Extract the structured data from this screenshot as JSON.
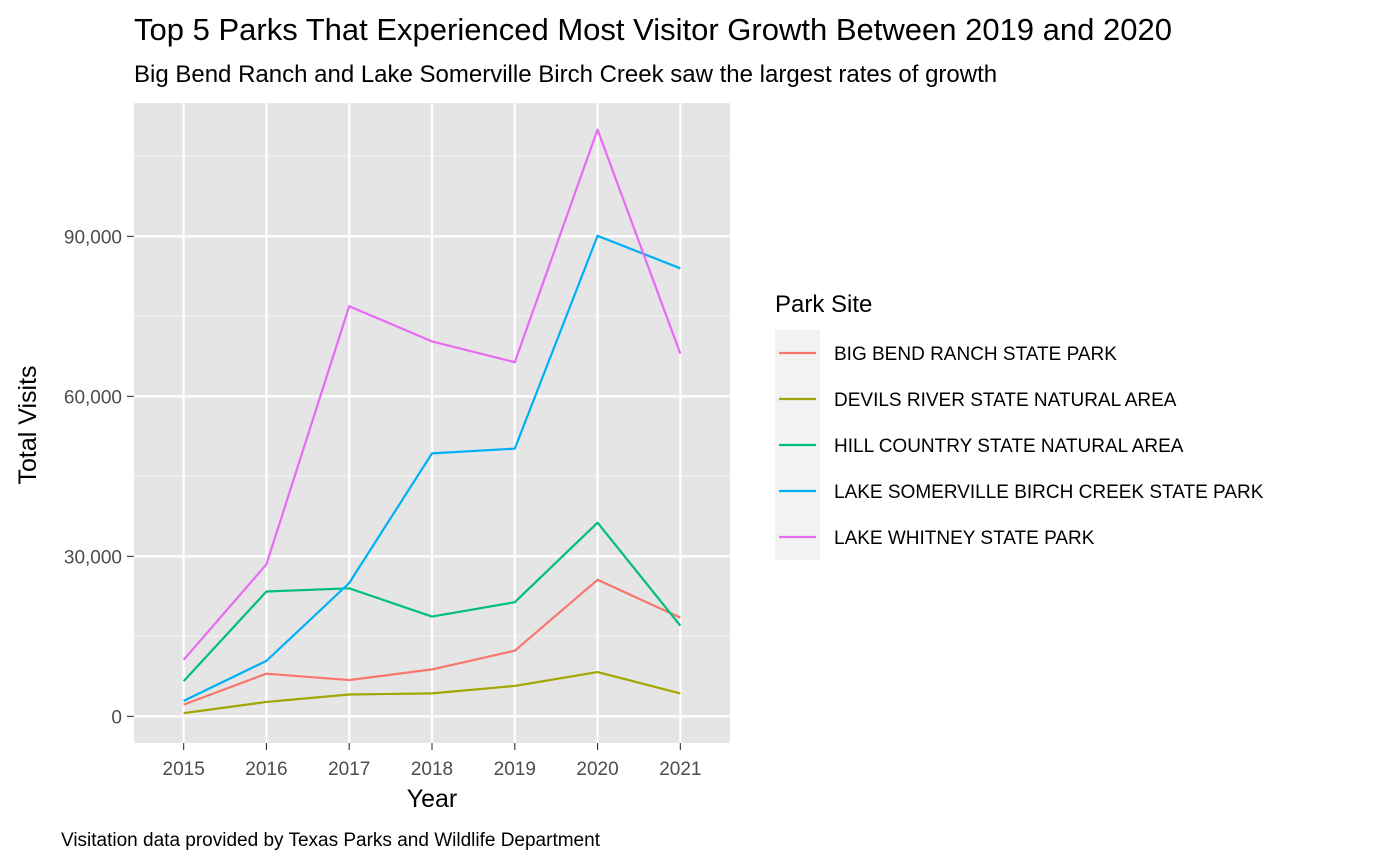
{
  "chart_data": {
    "type": "line",
    "title": "Top 5 Parks That Experienced Most Visitor Growth Between 2019 and 2020",
    "subtitle": "Big Bend Ranch and Lake Somerville Birch Creek saw the largest rates of growth",
    "xlabel": "Year",
    "ylabel": "Total Visits",
    "caption": "Visitation data provided by Texas Parks and Wildlife Department",
    "x": [
      2015,
      2016,
      2017,
      2018,
      2019,
      2020,
      2021
    ],
    "x_tick_labels": [
      "2015",
      "2016",
      "2017",
      "2018",
      "2019",
      "2020",
      "2021"
    ],
    "y_ticks": [
      0,
      30000,
      60000,
      90000
    ],
    "y_tick_labels": [
      "0",
      "30,000",
      "60,000",
      "90,000"
    ],
    "xlim": [
      2014.4,
      2021.6
    ],
    "ylim": [
      -5000,
      115000
    ],
    "grid": true,
    "legend_title": "Park Site",
    "legend_position": "right",
    "series": [
      {
        "name": "BIG BEND RANCH STATE PARK",
        "color": "#F8766D",
        "values": [
          2200,
          8000,
          6800,
          8800,
          12300,
          25600,
          18500
        ]
      },
      {
        "name": "DEVILS RIVER STATE NATURAL AREA",
        "color": "#A3A500",
        "values": [
          600,
          2700,
          4100,
          4300,
          5700,
          8300,
          4300
        ]
      },
      {
        "name": "HILL COUNTRY STATE NATURAL AREA",
        "color": "#00BF7D",
        "values": [
          6600,
          23400,
          24000,
          18700,
          21400,
          36300,
          17000
        ]
      },
      {
        "name": "LAKE SOMERVILLE BIRCH CREEK STATE PARK",
        "color": "#00B0F6",
        "values": [
          2900,
          10400,
          25000,
          49300,
          50200,
          90100,
          84000
        ]
      },
      {
        "name": "LAKE WHITNEY STATE PARK",
        "color": "#E76BF3",
        "values": [
          10600,
          28500,
          76900,
          70300,
          66400,
          110000,
          68000
        ]
      }
    ]
  }
}
